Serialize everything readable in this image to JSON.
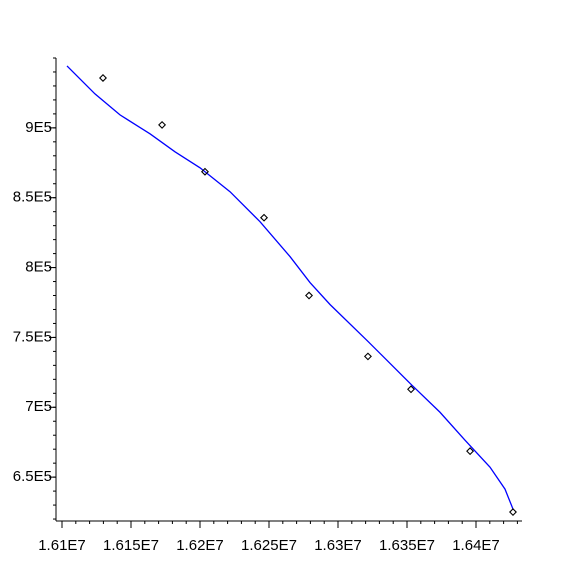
{
  "chart_data": {
    "type": "scatter-line",
    "x": [
      16129700,
      16172500,
      16203600,
      16246400,
      16279000,
      16321700,
      16352900,
      16395700,
      16426800
    ],
    "values": [
      935700,
      902100,
      868600,
      835700,
      780000,
      736400,
      712900,
      668600,
      625000
    ],
    "marker_color": "#000000",
    "fit_x": [
      16103620,
      16113040,
      16123910,
      16142030,
      16163770,
      16181880,
      16200000,
      16221740,
      16243480,
      16265220,
      16279710,
      16294200,
      16321740,
      16352900,
      16373910,
      16392030,
      16410140,
      16421010,
      16426810
    ],
    "fit_values": [
      944290,
      935000,
      924290,
      909290,
      895710,
      882860,
      871430,
      854290,
      832860,
      807860,
      789290,
      773570,
      747140,
      716430,
      696430,
      676430,
      657140,
      641430,
      627140
    ],
    "line_color": "#0000ff",
    "xlim": [
      16095650,
      16433330
    ],
    "ylim": [
      618600,
      950000
    ],
    "xticks": [
      {
        "value": 16100000,
        "label": "1.61E7"
      },
      {
        "value": 16150000,
        "label": "1.615E7"
      },
      {
        "value": 16200000,
        "label": "1.62E7"
      },
      {
        "value": 16250000,
        "label": "1.625E7"
      },
      {
        "value": 16300000,
        "label": "1.63E7"
      },
      {
        "value": 16350000,
        "label": "1.635E7"
      },
      {
        "value": 16400000,
        "label": "1.64E7"
      }
    ],
    "yticks": [
      {
        "value": 650000,
        "label": "6.5E5"
      },
      {
        "value": 700000,
        "label": "7E5"
      },
      {
        "value": 750000,
        "label": "7.5E5"
      },
      {
        "value": 800000,
        "label": "8E5"
      },
      {
        "value": 850000,
        "label": "8.5E5"
      },
      {
        "value": 900000,
        "label": "9E5"
      }
    ]
  }
}
